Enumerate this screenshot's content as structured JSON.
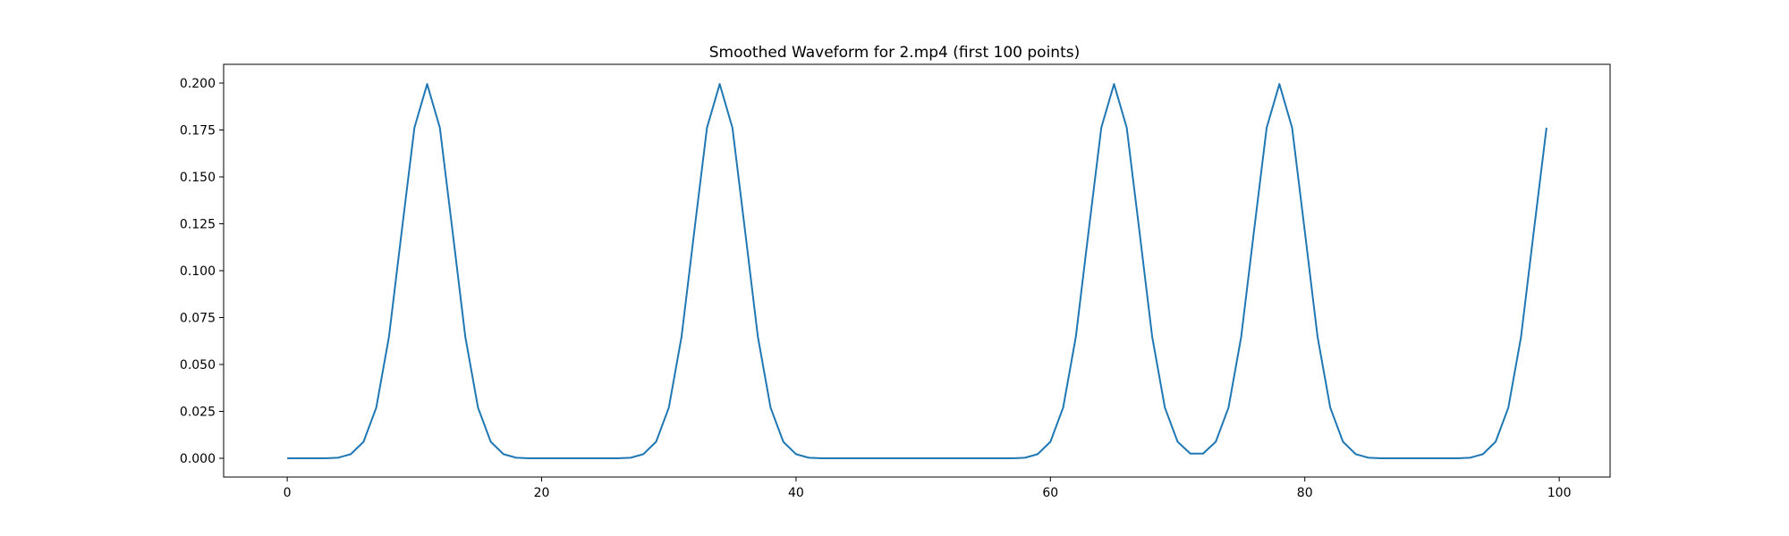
{
  "chart_data": {
    "type": "line",
    "title": "Smoothed Waveform for 2.mp4 (first 100 points)",
    "xlabel": "",
    "ylabel": "",
    "xlim": [
      -5,
      104
    ],
    "ylim": [
      -0.01,
      0.21
    ],
    "grid": false,
    "line_color": "#1f77b4",
    "x_ticks": [
      {
        "value": 0,
        "label": "0"
      },
      {
        "value": 20,
        "label": "20"
      },
      {
        "value": 40,
        "label": "40"
      },
      {
        "value": 60,
        "label": "60"
      },
      {
        "value": 80,
        "label": "80"
      },
      {
        "value": 100,
        "label": "100"
      }
    ],
    "y_ticks": [
      {
        "value": 0.0,
        "label": "0.000"
      },
      {
        "value": 0.025,
        "label": "0.025"
      },
      {
        "value": 0.05,
        "label": "0.050"
      },
      {
        "value": 0.075,
        "label": "0.075"
      },
      {
        "value": 0.1,
        "label": "0.100"
      },
      {
        "value": 0.125,
        "label": "0.125"
      },
      {
        "value": 0.15,
        "label": "0.150"
      },
      {
        "value": 0.175,
        "label": "0.175"
      },
      {
        "value": 0.2,
        "label": "0.200"
      }
    ],
    "series": [
      {
        "values": [
          0.0,
          0.0,
          0.0,
          0.0,
          0.0003,
          0.0022,
          0.0088,
          0.027,
          0.0648,
          0.1209,
          0.1762,
          0.1995,
          0.1762,
          0.1209,
          0.0648,
          0.027,
          0.0088,
          0.0022,
          0.0003,
          0.0,
          0.0,
          0.0,
          0.0,
          0.0,
          0.0,
          0.0,
          0.0,
          0.0003,
          0.0022,
          0.0088,
          0.027,
          0.0648,
          0.1209,
          0.1762,
          0.1995,
          0.1762,
          0.1209,
          0.0648,
          0.027,
          0.0088,
          0.0022,
          0.0003,
          0.0,
          0.0,
          0.0,
          0.0,
          0.0,
          0.0,
          0.0,
          0.0,
          0.0,
          0.0,
          0.0,
          0.0,
          0.0,
          0.0,
          0.0,
          0.0,
          0.0003,
          0.0022,
          0.0088,
          0.027,
          0.0648,
          0.1209,
          0.1762,
          0.1995,
          0.1762,
          0.1209,
          0.0648,
          0.027,
          0.0088,
          0.0025,
          0.0025,
          0.0088,
          0.027,
          0.0648,
          0.1209,
          0.1762,
          0.1995,
          0.1762,
          0.1209,
          0.0648,
          0.027,
          0.0088,
          0.0022,
          0.0003,
          0.0,
          0.0,
          0.0,
          0.0,
          0.0,
          0.0,
          0.0,
          0.0003,
          0.0022,
          0.0088,
          0.027,
          0.0648,
          0.1209,
          0.1762
        ]
      }
    ]
  }
}
